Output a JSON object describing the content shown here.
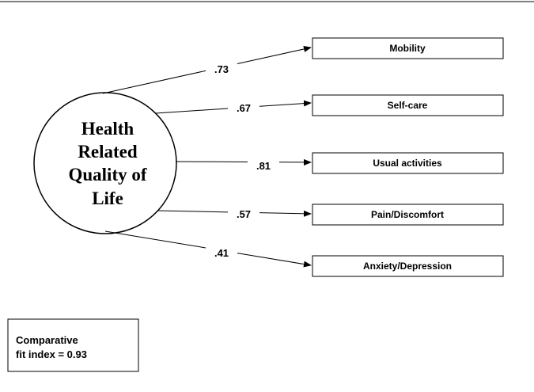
{
  "latent": {
    "label_lines": [
      "Health",
      "Related",
      "Quality of",
      "Life"
    ]
  },
  "indicators": [
    {
      "label": "Mobility",
      "loading": ".73"
    },
    {
      "label": "Self-care",
      "loading": ".67"
    },
    {
      "label": "Usual activities",
      "loading": ".81"
    },
    {
      "label": "Pain/Discomfort",
      "loading": ".57"
    },
    {
      "label": "Anxiety/Depression",
      "loading": ".41"
    }
  ],
  "fit_box": {
    "lines": [
      "Comparative",
      "fit index = 0.93"
    ]
  }
}
